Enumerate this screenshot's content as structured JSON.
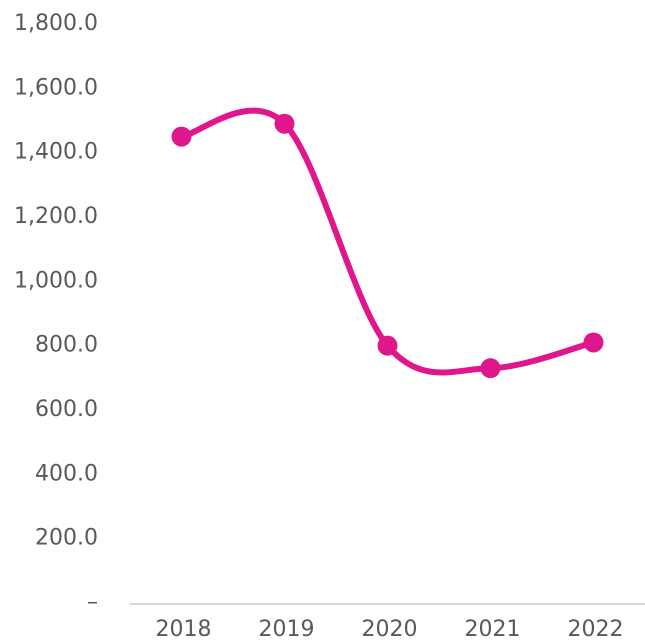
{
  "chart_data": {
    "type": "line",
    "categories": [
      "2018",
      "2019",
      "2020",
      "2021",
      "2022"
    ],
    "series": [
      {
        "color": "#e0168c",
        "values": [
          1450,
          1490,
          800,
          730,
          810
        ]
      }
    ],
    "smooth": true,
    "ylim": [
      0,
      1800
    ],
    "yticks": [
      {
        "value": 0,
        "label": "–"
      },
      {
        "value": 200,
        "label": "200.0"
      },
      {
        "value": 400,
        "label": "400.0"
      },
      {
        "value": 600,
        "label": "600.0"
      },
      {
        "value": 800,
        "label": "800.0"
      },
      {
        "value": 1000,
        "label": "1,000.0"
      },
      {
        "value": 1200,
        "label": "1,200.0"
      },
      {
        "value": 1400,
        "label": "1,400.0"
      },
      {
        "value": 1600,
        "label": "1,600.0"
      },
      {
        "value": 1800,
        "label": "1,800.0"
      }
    ],
    "grid": false
  }
}
